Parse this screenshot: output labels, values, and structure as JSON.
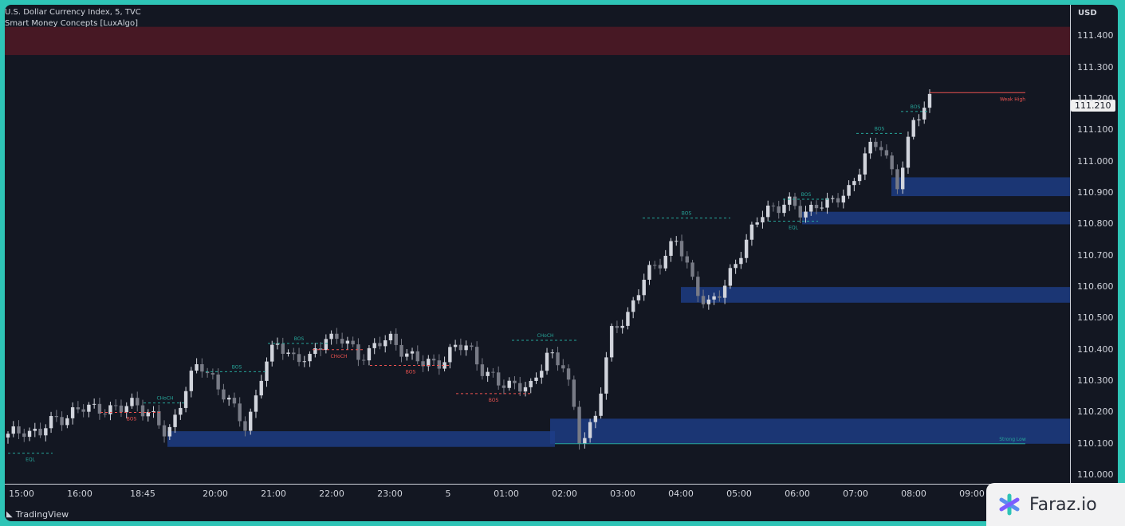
{
  "header": {
    "title": "U.S. Dollar Currency Index, 5, TVC",
    "indicator": "Smart Money Concepts [LuxAlgo]"
  },
  "price_axis": {
    "currency": "USD",
    "last_price": "111.210"
  },
  "footer": {
    "tradingview": "TradingView",
    "watermark": "Faraz.io"
  },
  "colors": {
    "background": "#131722",
    "bull": "#d1d4dc",
    "bear": "#787b86",
    "demand_zone": "#1e3f8a",
    "supply_zone": "#5a1a26",
    "bos_bull": "#26a69a",
    "bos_bear": "#ef5350",
    "border": "#2ec4b6"
  },
  "chart_data": {
    "type": "candlestick",
    "title": "U.S. Dollar Currency Index, 5, TVC",
    "y_unit": "USD",
    "ylim": [
      109.98,
      111.48
    ],
    "y_ticks": [
      "111.400",
      "111.300",
      "111.200",
      "111.100",
      "111.000",
      "110.900",
      "110.800",
      "110.700",
      "110.600",
      "110.500",
      "110.400",
      "110.300",
      "110.200",
      "110.100",
      "110.000"
    ],
    "x_ticks": [
      "15:00",
      "16:00",
      "18:45",
      "20:00",
      "21:00",
      "22:00",
      "23:00",
      "5",
      "01:00",
      "02:00",
      "03:00",
      "04:00",
      "05:00",
      "06:00",
      "07:00",
      "08:00",
      "09:00"
    ],
    "close_path": [
      110.12,
      110.15,
      110.13,
      110.18,
      110.2,
      110.21,
      110.22,
      110.2,
      110.24,
      110.19,
      110.12,
      110.26,
      110.35,
      110.31,
      110.22,
      110.15,
      110.33,
      110.42,
      110.38,
      110.36,
      110.45,
      110.43,
      110.38,
      110.41,
      110.43,
      110.4,
      110.35,
      110.36,
      110.4,
      110.41,
      110.33,
      110.28,
      110.3,
      110.27,
      110.4,
      110.35,
      110.1,
      110.2,
      110.45,
      110.52,
      110.62,
      110.68,
      110.76,
      110.62,
      110.55,
      110.58,
      110.71,
      110.8,
      110.85,
      110.88,
      110.82,
      110.88,
      110.86,
      110.92,
      111.03,
      111.05,
      110.93,
      111.12,
      111.21
    ],
    "zones": [
      {
        "type": "supply",
        "top": 111.43,
        "bottom": 111.34
      },
      {
        "type": "demand",
        "top": 110.14,
        "bottom": 110.09
      },
      {
        "type": "demand",
        "top": 110.18,
        "bottom": 110.1
      },
      {
        "type": "demand",
        "top": 110.6,
        "bottom": 110.55
      },
      {
        "type": "demand",
        "top": 110.84,
        "bottom": 110.8
      },
      {
        "type": "demand",
        "top": 110.95,
        "bottom": 110.89
      }
    ],
    "annotations": [
      {
        "label": "EQL",
        "price": 110.07,
        "side": "low"
      },
      {
        "label": "BOS",
        "price": 110.2,
        "side": "bear"
      },
      {
        "label": "CHoCH",
        "price": 110.23,
        "side": "bull"
      },
      {
        "label": "BOS",
        "price": 110.33,
        "side": "bull"
      },
      {
        "label": "BOS",
        "price": 110.42,
        "side": "bull"
      },
      {
        "label": "CHoCH",
        "price": 110.4,
        "side": "bear"
      },
      {
        "label": "BOS",
        "price": 110.35,
        "side": "bear"
      },
      {
        "label": "BOS",
        "price": 110.26,
        "side": "bear"
      },
      {
        "label": "CHoCH",
        "price": 110.43,
        "side": "bull"
      },
      {
        "label": "BOS",
        "price": 110.82,
        "side": "bull"
      },
      {
        "label": "BOS",
        "price": 110.88,
        "side": "bull"
      },
      {
        "label": "EQL",
        "price": 110.81,
        "side": "low"
      },
      {
        "label": "BOS",
        "price": 111.09,
        "side": "bull"
      },
      {
        "label": "BOS",
        "price": 111.16,
        "side": "bull"
      },
      {
        "label": "Weak High",
        "price": 111.22,
        "side": "bear"
      },
      {
        "label": "Strong Low",
        "price": 110.1,
        "side": "bull"
      }
    ]
  }
}
